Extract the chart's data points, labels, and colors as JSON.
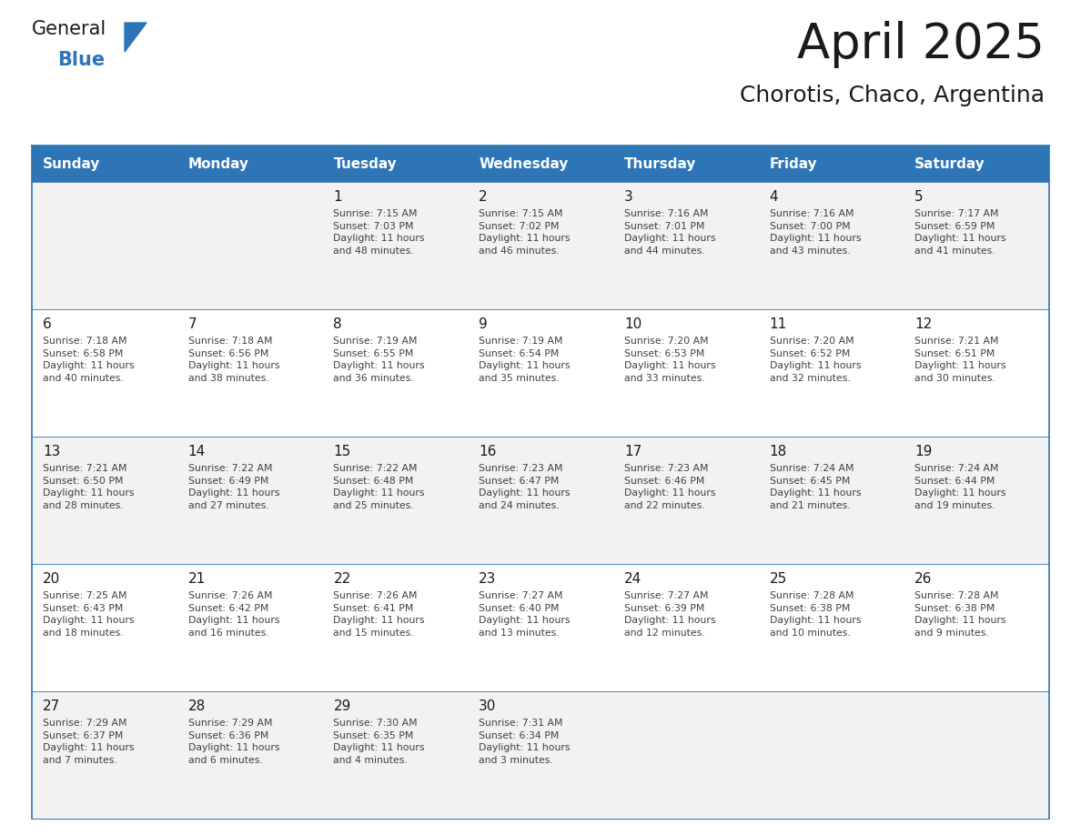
{
  "title": "April 2025",
  "subtitle": "Chorotis, Chaco, Argentina",
  "header_bg": "#2E75B6",
  "header_text_color": "#FFFFFF",
  "cell_bg_odd": "#F2F2F2",
  "cell_bg_even": "#FFFFFF",
  "border_color": "#2E75B6",
  "day_headers": [
    "Sunday",
    "Monday",
    "Tuesday",
    "Wednesday",
    "Thursday",
    "Friday",
    "Saturday"
  ],
  "title_color": "#1a1a1a",
  "subtitle_color": "#1a1a1a",
  "cell_text_color": "#404040",
  "day_num_color": "#1a1a1a",
  "logo_text_color": "#1a1a1a",
  "logo_blue_color": "#2E75B6",
  "calendar": [
    [
      {
        "day": "",
        "info": ""
      },
      {
        "day": "",
        "info": ""
      },
      {
        "day": "1",
        "info": "Sunrise: 7:15 AM\nSunset: 7:03 PM\nDaylight: 11 hours\nand 48 minutes."
      },
      {
        "day": "2",
        "info": "Sunrise: 7:15 AM\nSunset: 7:02 PM\nDaylight: 11 hours\nand 46 minutes."
      },
      {
        "day": "3",
        "info": "Sunrise: 7:16 AM\nSunset: 7:01 PM\nDaylight: 11 hours\nand 44 minutes."
      },
      {
        "day": "4",
        "info": "Sunrise: 7:16 AM\nSunset: 7:00 PM\nDaylight: 11 hours\nand 43 minutes."
      },
      {
        "day": "5",
        "info": "Sunrise: 7:17 AM\nSunset: 6:59 PM\nDaylight: 11 hours\nand 41 minutes."
      }
    ],
    [
      {
        "day": "6",
        "info": "Sunrise: 7:18 AM\nSunset: 6:58 PM\nDaylight: 11 hours\nand 40 minutes."
      },
      {
        "day": "7",
        "info": "Sunrise: 7:18 AM\nSunset: 6:56 PM\nDaylight: 11 hours\nand 38 minutes."
      },
      {
        "day": "8",
        "info": "Sunrise: 7:19 AM\nSunset: 6:55 PM\nDaylight: 11 hours\nand 36 minutes."
      },
      {
        "day": "9",
        "info": "Sunrise: 7:19 AM\nSunset: 6:54 PM\nDaylight: 11 hours\nand 35 minutes."
      },
      {
        "day": "10",
        "info": "Sunrise: 7:20 AM\nSunset: 6:53 PM\nDaylight: 11 hours\nand 33 minutes."
      },
      {
        "day": "11",
        "info": "Sunrise: 7:20 AM\nSunset: 6:52 PM\nDaylight: 11 hours\nand 32 minutes."
      },
      {
        "day": "12",
        "info": "Sunrise: 7:21 AM\nSunset: 6:51 PM\nDaylight: 11 hours\nand 30 minutes."
      }
    ],
    [
      {
        "day": "13",
        "info": "Sunrise: 7:21 AM\nSunset: 6:50 PM\nDaylight: 11 hours\nand 28 minutes."
      },
      {
        "day": "14",
        "info": "Sunrise: 7:22 AM\nSunset: 6:49 PM\nDaylight: 11 hours\nand 27 minutes."
      },
      {
        "day": "15",
        "info": "Sunrise: 7:22 AM\nSunset: 6:48 PM\nDaylight: 11 hours\nand 25 minutes."
      },
      {
        "day": "16",
        "info": "Sunrise: 7:23 AM\nSunset: 6:47 PM\nDaylight: 11 hours\nand 24 minutes."
      },
      {
        "day": "17",
        "info": "Sunrise: 7:23 AM\nSunset: 6:46 PM\nDaylight: 11 hours\nand 22 minutes."
      },
      {
        "day": "18",
        "info": "Sunrise: 7:24 AM\nSunset: 6:45 PM\nDaylight: 11 hours\nand 21 minutes."
      },
      {
        "day": "19",
        "info": "Sunrise: 7:24 AM\nSunset: 6:44 PM\nDaylight: 11 hours\nand 19 minutes."
      }
    ],
    [
      {
        "day": "20",
        "info": "Sunrise: 7:25 AM\nSunset: 6:43 PM\nDaylight: 11 hours\nand 18 minutes."
      },
      {
        "day": "21",
        "info": "Sunrise: 7:26 AM\nSunset: 6:42 PM\nDaylight: 11 hours\nand 16 minutes."
      },
      {
        "day": "22",
        "info": "Sunrise: 7:26 AM\nSunset: 6:41 PM\nDaylight: 11 hours\nand 15 minutes."
      },
      {
        "day": "23",
        "info": "Sunrise: 7:27 AM\nSunset: 6:40 PM\nDaylight: 11 hours\nand 13 minutes."
      },
      {
        "day": "24",
        "info": "Sunrise: 7:27 AM\nSunset: 6:39 PM\nDaylight: 11 hours\nand 12 minutes."
      },
      {
        "day": "25",
        "info": "Sunrise: 7:28 AM\nSunset: 6:38 PM\nDaylight: 11 hours\nand 10 minutes."
      },
      {
        "day": "26",
        "info": "Sunrise: 7:28 AM\nSunset: 6:38 PM\nDaylight: 11 hours\nand 9 minutes."
      }
    ],
    [
      {
        "day": "27",
        "info": "Sunrise: 7:29 AM\nSunset: 6:37 PM\nDaylight: 11 hours\nand 7 minutes."
      },
      {
        "day": "28",
        "info": "Sunrise: 7:29 AM\nSunset: 6:36 PM\nDaylight: 11 hours\nand 6 minutes."
      },
      {
        "day": "29",
        "info": "Sunrise: 7:30 AM\nSunset: 6:35 PM\nDaylight: 11 hours\nand 4 minutes."
      },
      {
        "day": "30",
        "info": "Sunrise: 7:31 AM\nSunset: 6:34 PM\nDaylight: 11 hours\nand 3 minutes."
      },
      {
        "day": "",
        "info": ""
      },
      {
        "day": "",
        "info": ""
      },
      {
        "day": "",
        "info": ""
      }
    ]
  ]
}
